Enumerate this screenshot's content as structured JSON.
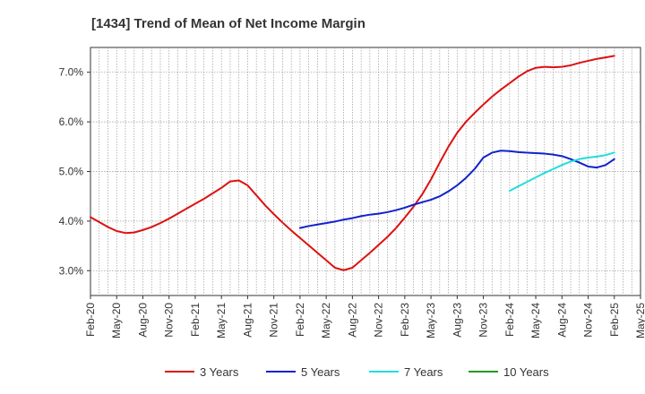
{
  "chart_data": {
    "type": "line",
    "title": "[1434]  Trend of Mean of Net Income Margin",
    "xlabel": "",
    "ylabel": "",
    "ylim": [
      2.5,
      7.5
    ],
    "y_ticks": [
      3.0,
      4.0,
      5.0,
      6.0,
      7.0
    ],
    "y_tick_labels": [
      "3.0%",
      "4.0%",
      "5.0%",
      "6.0%",
      "7.0%"
    ],
    "x_range": [
      "Feb-20",
      "May-25"
    ],
    "x_tick_labels": [
      "Feb-20",
      "May-20",
      "Aug-20",
      "Nov-20",
      "Feb-21",
      "May-21",
      "Aug-21",
      "Nov-21",
      "Feb-22",
      "May-22",
      "Aug-22",
      "Nov-22",
      "Feb-23",
      "May-23",
      "Aug-23",
      "Nov-23",
      "Feb-24",
      "May-24",
      "Aug-24",
      "Nov-24",
      "Feb-25",
      "May-25"
    ],
    "grid": true,
    "legend_position": "bottom",
    "series": [
      {
        "name": "3 Years",
        "color": "#dd1111",
        "x": [
          "Feb-20",
          "Mar-20",
          "Apr-20",
          "May-20",
          "Jun-20",
          "Jul-20",
          "Aug-20",
          "Sep-20",
          "Oct-20",
          "Nov-20",
          "Dec-20",
          "Jan-21",
          "Feb-21",
          "Mar-21",
          "Apr-21",
          "May-21",
          "Jun-21",
          "Jul-21",
          "Aug-21",
          "Sep-21",
          "Oct-21",
          "Nov-21",
          "Dec-21",
          "Jan-22",
          "Feb-22",
          "Mar-22",
          "Apr-22",
          "May-22",
          "Jun-22",
          "Jul-22",
          "Aug-22",
          "Sep-22",
          "Oct-22",
          "Nov-22",
          "Dec-22",
          "Jan-23",
          "Feb-23",
          "Mar-23",
          "Apr-23",
          "May-23",
          "Jun-23",
          "Jul-23",
          "Aug-23",
          "Sep-23",
          "Oct-23",
          "Nov-23",
          "Dec-23",
          "Jan-24",
          "Feb-24",
          "Mar-24",
          "Apr-24",
          "May-24",
          "Jun-24",
          "Jul-24",
          "Aug-24",
          "Sep-24",
          "Oct-24",
          "Nov-24",
          "Dec-24",
          "Jan-25",
          "Feb-25"
        ],
        "values": [
          4.08,
          3.98,
          3.88,
          3.8,
          3.76,
          3.77,
          3.82,
          3.88,
          3.96,
          4.05,
          4.15,
          4.25,
          4.35,
          4.45,
          4.56,
          4.67,
          4.8,
          4.82,
          4.72,
          4.52,
          4.32,
          4.14,
          3.97,
          3.81,
          3.66,
          3.51,
          3.36,
          3.21,
          3.06,
          3.01,
          3.06,
          3.21,
          3.36,
          3.52,
          3.68,
          3.86,
          4.07,
          4.29,
          4.54,
          4.84,
          5.18,
          5.5,
          5.78,
          6.0,
          6.18,
          6.35,
          6.51,
          6.65,
          6.78,
          6.91,
          7.02,
          7.09,
          7.11,
          7.1,
          7.11,
          7.14,
          7.19,
          7.23,
          7.27,
          7.3,
          7.33
        ]
      },
      {
        "name": "5 Years",
        "color": "#1122cc",
        "x": [
          "Feb-22",
          "Mar-22",
          "Apr-22",
          "May-22",
          "Jun-22",
          "Jul-22",
          "Aug-22",
          "Sep-22",
          "Oct-22",
          "Nov-22",
          "Dec-22",
          "Jan-23",
          "Feb-23",
          "Mar-23",
          "Apr-23",
          "May-23",
          "Jun-23",
          "Jul-23",
          "Aug-23",
          "Sep-23",
          "Oct-23",
          "Nov-23",
          "Dec-23",
          "Jan-24",
          "Feb-24",
          "Mar-24",
          "Apr-24",
          "May-24",
          "Jun-24",
          "Jul-24",
          "Aug-24",
          "Sep-24",
          "Oct-24",
          "Nov-24",
          "Dec-24",
          "Jan-25",
          "Feb-25"
        ],
        "values": [
          3.86,
          3.9,
          3.93,
          3.96,
          3.99,
          4.03,
          4.06,
          4.1,
          4.13,
          4.15,
          4.18,
          4.22,
          4.27,
          4.33,
          4.38,
          4.43,
          4.5,
          4.6,
          4.72,
          4.87,
          5.05,
          5.28,
          5.38,
          5.42,
          5.41,
          5.39,
          5.38,
          5.37,
          5.36,
          5.34,
          5.31,
          5.25,
          5.18,
          5.1,
          5.08,
          5.13,
          5.25
        ]
      },
      {
        "name": "7 Years",
        "color": "#22dddd",
        "x": [
          "Feb-24",
          "Mar-24",
          "Apr-24",
          "May-24",
          "Jun-24",
          "Jul-24",
          "Aug-24",
          "Sep-24",
          "Oct-24",
          "Nov-24",
          "Dec-24",
          "Jan-25",
          "Feb-25"
        ],
        "values": [
          4.61,
          4.7,
          4.79,
          4.88,
          4.97,
          5.05,
          5.13,
          5.2,
          5.25,
          5.28,
          5.3,
          5.33,
          5.38
        ]
      },
      {
        "name": "10 Years",
        "color": "#229922",
        "x": [],
        "values": []
      }
    ]
  }
}
